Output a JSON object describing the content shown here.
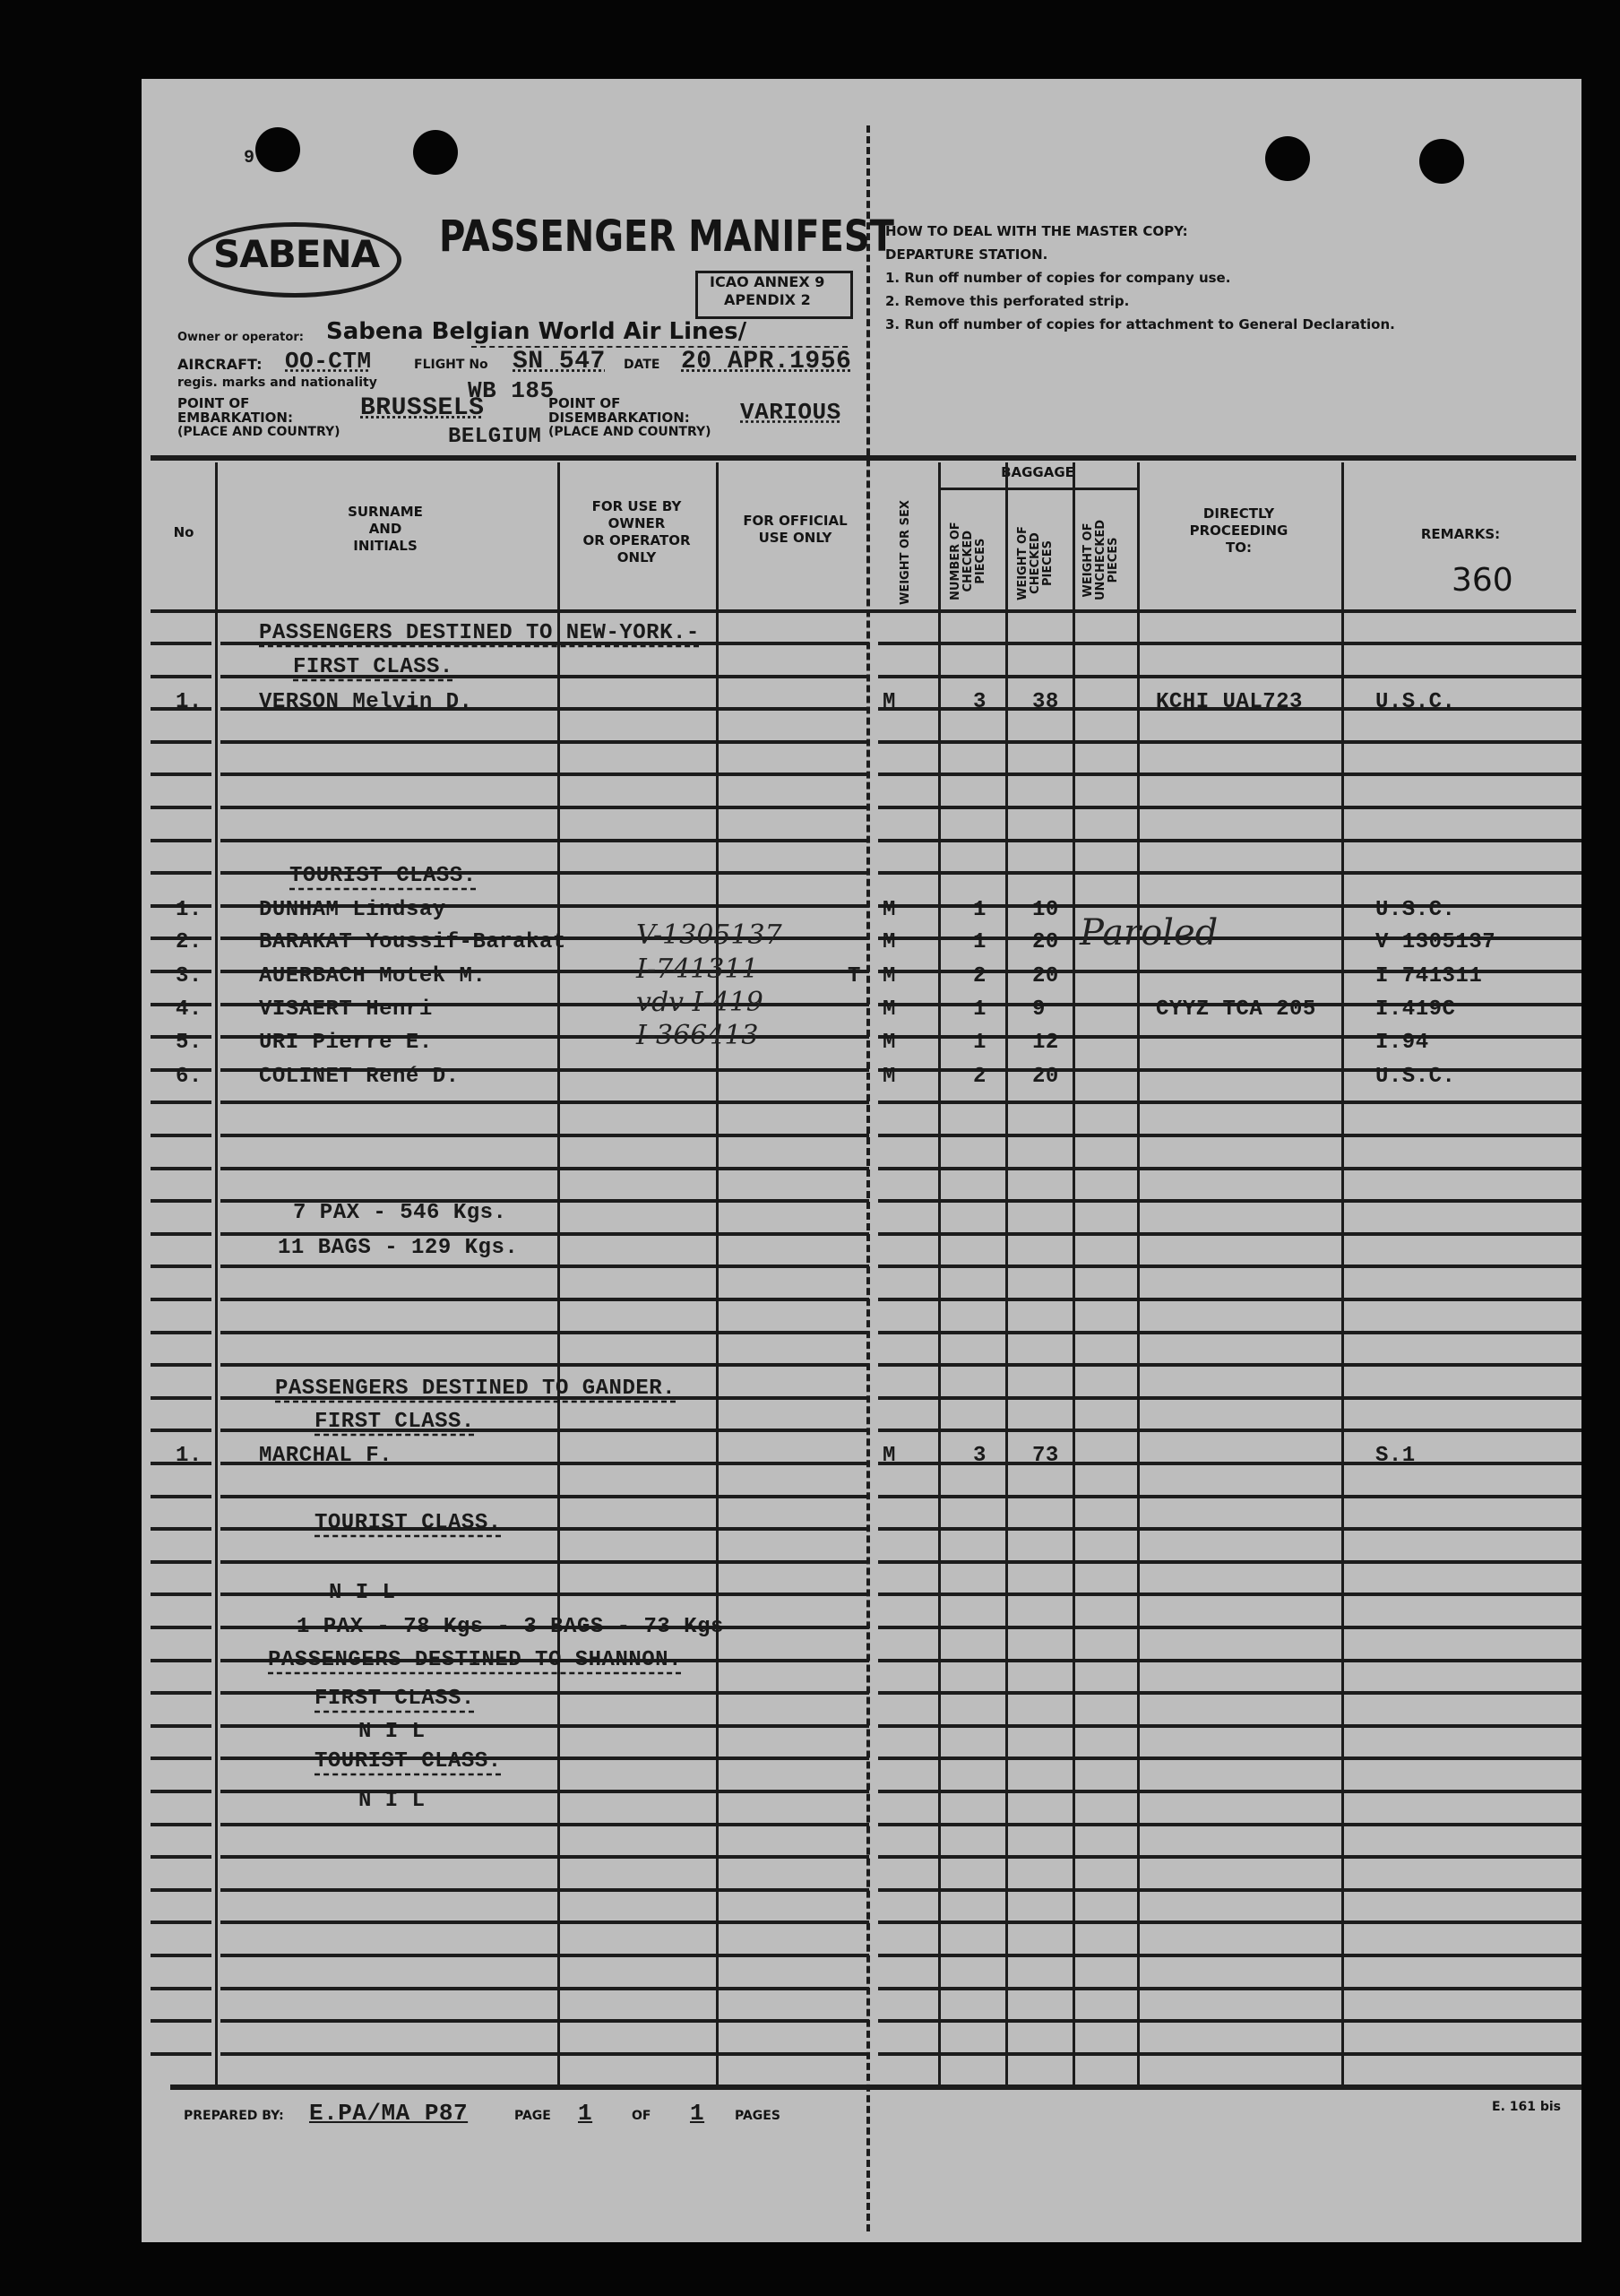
{
  "corner_mark": "9",
  "logo": "SABENA",
  "title": "PASSENGER MANIFEST",
  "icao_box": [
    "ICAO ANNEX 9",
    "APENDIX 2"
  ],
  "owner_label": "Owner or operator:",
  "owner_value": "Sabena Belgian World Air Lines/",
  "aircraft_label": "AIRCRAFT:",
  "aircraft_sub": "regis. marks and nationality",
  "aircraft_value": "OO-CTM",
  "flight_label": "FLIGHT No",
  "flight_value": "SN 547",
  "flight_extra": "WB 185",
  "date_label": "DATE",
  "date_value": "20 APR.1956",
  "embark_label": [
    "POINT OF",
    "EMBARKATION:",
    "(PLACE AND COUNTRY)"
  ],
  "embark_value": "BRUSSELS",
  "embark_country": "BELGIUM",
  "disembark_label": [
    "POINT OF",
    "DISEMBARKATION:",
    "(PLACE AND COUNTRY)"
  ],
  "disembark_value": "VARIOUS",
  "instructions": [
    "HOW TO DEAL WITH THE MASTER COPY:",
    "DEPARTURE STATION.",
    "1. Run off number of copies for company use.",
    "2. Remove this perforated strip.",
    "3. Run off number of copies for attachment to General Declaration."
  ],
  "columns": {
    "no": "No",
    "surname": [
      "SURNAME",
      "AND",
      "INITIALS"
    ],
    "owner_use": [
      "FOR USE BY",
      "OWNER",
      "OR OPERATOR",
      "ONLY"
    ],
    "official_use": [
      "FOR OFFICIAL",
      "USE ONLY"
    ],
    "weight_sex": "WEIGHT OR SEX",
    "baggage": "BAGGAGE",
    "num_checked": [
      "NUMBER OF",
      "CHECKED",
      "PIECES"
    ],
    "weight_checked": [
      "WEIGHT OF",
      "CHECKED",
      "PIECES"
    ],
    "weight_unchecked": [
      "WEIGHT OF",
      "UNCHECKED",
      "PIECES"
    ],
    "proceeding": [
      "DIRECTLY",
      "PROCEEDING",
      "TO:"
    ],
    "remarks": "REMARKS:"
  },
  "remarks_number": "360",
  "sections": {
    "ny_title": "PASSENGERS DESTINED TO NEW-YORK.-",
    "ny_first": "FIRST CLASS.",
    "ny_tourist": "TOURIST CLASS.",
    "ny_total_pax": "7 PAX - 546 Kgs.",
    "ny_total_bags": "11 BAGS - 129 Kgs.",
    "gander_title": "PASSENGERS DESTINED TO GANDER.",
    "gander_first": "FIRST CLASS.",
    "gander_tourist": "TOURIST CLASS.",
    "gander_tourist_nil": "N I L",
    "gander_total": "1 PAX - 78 Kgs - 3 BAGS - 73 Kgs",
    "shannon_title": "PASSENGERS DESTINED TO SHANNON.",
    "shannon_first": "FIRST CLASS.",
    "shannon_first_nil": "N I L",
    "shannon_tourist": "TOURIST CLASS.",
    "shannon_tourist_nil": "N I L"
  },
  "passengers": [
    {
      "no": "1.",
      "name": "VERSON  Melvin    D.",
      "owner_note": "",
      "sex": "M",
      "pieces": "3",
      "weight": "38",
      "proceeding": "KCHI  UAL723",
      "remarks": "U.S.C."
    },
    {
      "no": "1.",
      "name": "DUNHAM  Lindsay",
      "owner_note": "",
      "sex": "M",
      "pieces": "1",
      "weight": "10",
      "proceeding": "",
      "remarks": "U.S.C."
    },
    {
      "no": "2.",
      "name": "BARAKAT Youssif-Barakat",
      "owner_note": "V-1305137",
      "sex": "M",
      "pieces": "1",
      "weight": "20",
      "proceeding": "Paroled",
      "remarks": "V 1305137"
    },
    {
      "no": "3.",
      "name": "AUERBACH Motek  M.",
      "owner_note": "I-741311",
      "official_mark": "T",
      "sex": "M",
      "pieces": "2",
      "weight": "20",
      "proceeding": "",
      "remarks": "I 741311"
    },
    {
      "no": "4.",
      "name": "VISAERT Henri",
      "owner_note": "vdv I-419",
      "sex": "M",
      "pieces": "1",
      "weight": "9",
      "proceeding": "CYYZ TCA 205",
      "remarks": "I.419C"
    },
    {
      "no": "5.",
      "name": "URI   Pierre   E.",
      "owner_note": "I-366413",
      "sex": "M",
      "pieces": "1",
      "weight": "12",
      "proceeding": "",
      "remarks": "I.94"
    },
    {
      "no": "6.",
      "name": "COLINET René    D.",
      "owner_note": "",
      "sex": "M",
      "pieces": "2",
      "weight": "20",
      "proceeding": "",
      "remarks": "U.S.C."
    },
    {
      "no": "1.",
      "name": "MARCHAL             F.",
      "owner_note": "",
      "sex": "M",
      "pieces": "3",
      "weight": "73",
      "proceeding": "",
      "remarks": "S.1"
    }
  ],
  "footer": {
    "prepared_label": "PREPARED BY:",
    "prepared_value": "E.PA/MA P87",
    "page_label": "PAGE",
    "page_value": "1",
    "of_label": "OF",
    "of_value": "1",
    "pages_label": "PAGES",
    "form_code": "E. 161 bis"
  }
}
